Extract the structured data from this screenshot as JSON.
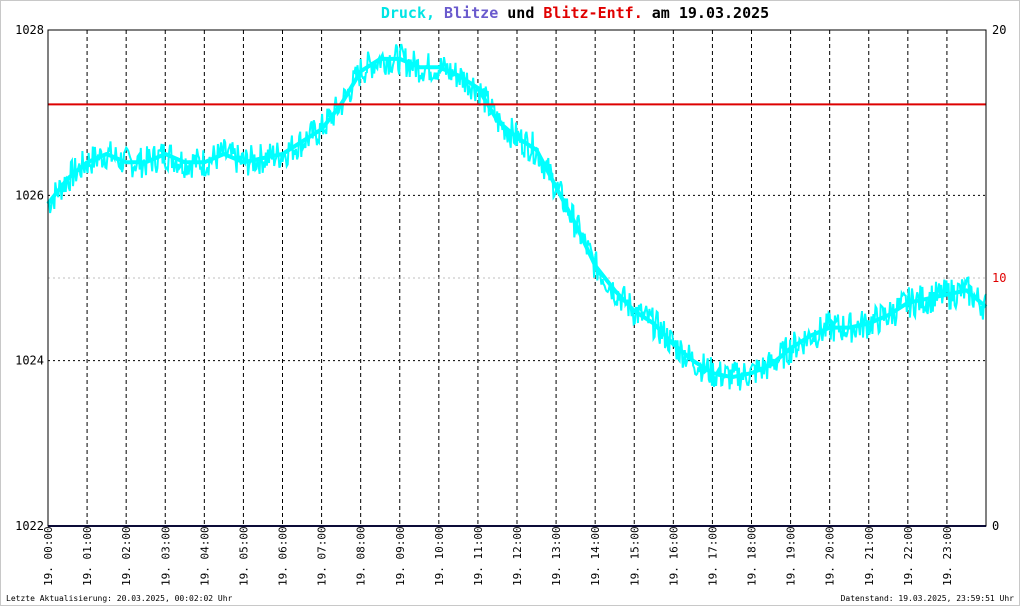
{
  "header": {
    "title_parts": [
      {
        "text": "Druck,",
        "color": "#00e5e5"
      },
      {
        "text": " Blitze",
        "color": "#6a5acd"
      },
      {
        "text": " und ",
        "color": "#000000"
      },
      {
        "text": "Blitz-Entf.",
        "color": "#e00000"
      },
      {
        "text": " am 19.03.2025",
        "color": "#000000"
      }
    ]
  },
  "footer": {
    "left": "Letzte Aktualisierung: 20.03.2025, 00:02:02 Uhr",
    "right": "Datenstand: 19.03.2025, 23:59:51 Uhr"
  },
  "chart_data": {
    "type": "line",
    "title": "Druck, Blitze und Blitz-Entf. am 19.03.2025",
    "xlabel": "",
    "ylabel": "",
    "x_tick_labels": [
      "19. 00:00",
      "19. 01:00",
      "19. 02:00",
      "19. 03:00",
      "19. 04:00",
      "19. 05:00",
      "19. 06:00",
      "19. 07:00",
      "19. 08:00",
      "19. 09:00",
      "19. 10:00",
      "19. 11:00",
      "19. 12:00",
      "19. 13:00",
      "19. 14:00",
      "19. 15:00",
      "19. 16:00",
      "19. 17:00",
      "19. 18:00",
      "19. 19:00",
      "19. 20:00",
      "19. 21:00",
      "19. 22:00",
      "19. 23:00"
    ],
    "xlim_hours": [
      0,
      24
    ],
    "y_left": {
      "ylim": [
        1022,
        1028
      ],
      "ticks": [
        "1022",
        "1024",
        "1026",
        "1028"
      ]
    },
    "y_right": {
      "ylim": [
        0,
        20
      ],
      "ticks": [
        "0",
        "10",
        "20"
      ],
      "tick_color_mid": "#e00000"
    },
    "grid": true,
    "series": [
      {
        "name": "Druck",
        "color": "#00ffff",
        "axis": "left",
        "x": [
          0,
          0.5,
          1,
          1.5,
          2,
          2.5,
          3,
          3.5,
          4,
          4.5,
          5,
          5.5,
          6,
          6.5,
          7,
          7.5,
          8,
          8.5,
          9,
          9.5,
          10,
          10.5,
          11,
          11.5,
          12,
          12.5,
          13,
          13.5,
          14,
          14.5,
          15,
          15.5,
          16,
          16.5,
          17,
          17.5,
          18,
          18.5,
          19,
          19.5,
          20,
          20.5,
          21,
          21.5,
          22,
          22.5,
          23,
          23.5,
          24
        ],
        "values": [
          1025.9,
          1026.2,
          1026.4,
          1026.5,
          1026.4,
          1026.4,
          1026.5,
          1026.4,
          1026.4,
          1026.5,
          1026.4,
          1026.45,
          1026.5,
          1026.65,
          1026.8,
          1027.1,
          1027.5,
          1027.65,
          1027.65,
          1027.55,
          1027.55,
          1027.45,
          1027.3,
          1026.9,
          1026.7,
          1026.55,
          1026.1,
          1025.65,
          1025.15,
          1024.85,
          1024.6,
          1024.45,
          1024.2,
          1024.0,
          1023.85,
          1023.8,
          1023.85,
          1023.95,
          1024.15,
          1024.3,
          1024.4,
          1024.4,
          1024.45,
          1024.55,
          1024.7,
          1024.75,
          1024.8,
          1024.85,
          1024.65
        ]
      },
      {
        "name": "Blitze",
        "color": "#191970",
        "axis": "right",
        "x": [
          0,
          24
        ],
        "values": [
          0,
          0
        ]
      },
      {
        "name": "Blitz-Entf.",
        "color": "#dd0000",
        "axis": "right",
        "x": [
          0,
          24
        ],
        "values": [
          17,
          17
        ]
      }
    ]
  }
}
